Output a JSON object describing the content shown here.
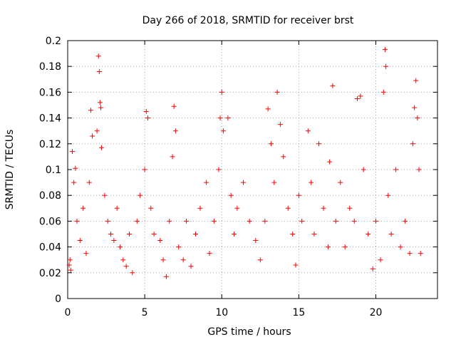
{
  "chart_data": {
    "type": "scatter",
    "title": "Day 266 of 2018, SRMTID for receiver brst",
    "xlabel": "GPS time / hours",
    "ylabel": "SRMTID / TECUs",
    "xlim": [
      0,
      24
    ],
    "ylim": [
      0,
      0.2
    ],
    "x_ticks": [
      "0",
      "5",
      "10",
      "15",
      "20"
    ],
    "y_ticks": [
      "0",
      "0.02",
      "0.04",
      "0.06",
      "0.08",
      "0.1",
      "0.12",
      "0.14",
      "0.16",
      "0.18",
      "0.2"
    ],
    "grid": true,
    "marker": "plus",
    "color": "#ff0000",
    "series": [
      {
        "points": [
          [
            0.1,
            0.026
          ],
          [
            0.15,
            0.03
          ],
          [
            0.2,
            0.022
          ],
          [
            0.3,
            0.114
          ],
          [
            0.4,
            0.09
          ],
          [
            0.5,
            0.101
          ],
          [
            0.6,
            0.06
          ],
          [
            0.8,
            0.045
          ],
          [
            1.0,
            0.07
          ],
          [
            1.2,
            0.035
          ],
          [
            1.4,
            0.09
          ],
          [
            1.5,
            0.146
          ],
          [
            1.6,
            0.126
          ],
          [
            1.9,
            0.13
          ],
          [
            2.0,
            0.188
          ],
          [
            2.05,
            0.176
          ],
          [
            2.1,
            0.152
          ],
          [
            2.15,
            0.148
          ],
          [
            2.2,
            0.117
          ],
          [
            2.4,
            0.08
          ],
          [
            2.6,
            0.06
          ],
          [
            2.8,
            0.05
          ],
          [
            3.0,
            0.045
          ],
          [
            3.2,
            0.07
          ],
          [
            3.4,
            0.04
          ],
          [
            3.6,
            0.03
          ],
          [
            3.8,
            0.025
          ],
          [
            4.0,
            0.05
          ],
          [
            4.2,
            0.02
          ],
          [
            4.5,
            0.06
          ],
          [
            4.7,
            0.08
          ],
          [
            5.0,
            0.1
          ],
          [
            5.1,
            0.145
          ],
          [
            5.2,
            0.14
          ],
          [
            5.4,
            0.07
          ],
          [
            5.6,
            0.05
          ],
          [
            6.0,
            0.045
          ],
          [
            6.2,
            0.03
          ],
          [
            6.4,
            0.017
          ],
          [
            6.6,
            0.06
          ],
          [
            6.8,
            0.11
          ],
          [
            6.9,
            0.149
          ],
          [
            7.0,
            0.13
          ],
          [
            7.2,
            0.04
          ],
          [
            7.5,
            0.03
          ],
          [
            7.7,
            0.06
          ],
          [
            8.0,
            0.025
          ],
          [
            8.3,
            0.05
          ],
          [
            8.6,
            0.07
          ],
          [
            9.0,
            0.09
          ],
          [
            9.2,
            0.035
          ],
          [
            9.5,
            0.06
          ],
          [
            9.8,
            0.1
          ],
          [
            9.9,
            0.14
          ],
          [
            10.0,
            0.16
          ],
          [
            10.1,
            0.13
          ],
          [
            10.4,
            0.14
          ],
          [
            10.6,
            0.08
          ],
          [
            10.8,
            0.05
          ],
          [
            11.0,
            0.07
          ],
          [
            11.4,
            0.09
          ],
          [
            11.8,
            0.06
          ],
          [
            12.2,
            0.045
          ],
          [
            12.5,
            0.03
          ],
          [
            12.8,
            0.06
          ],
          [
            13.0,
            0.147
          ],
          [
            13.2,
            0.12
          ],
          [
            13.4,
            0.09
          ],
          [
            13.6,
            0.16
          ],
          [
            13.8,
            0.135
          ],
          [
            14.0,
            0.11
          ],
          [
            14.3,
            0.07
          ],
          [
            14.6,
            0.05
          ],
          [
            14.8,
            0.026
          ],
          [
            15.0,
            0.08
          ],
          [
            15.2,
            0.06
          ],
          [
            15.6,
            0.13
          ],
          [
            15.8,
            0.09
          ],
          [
            16.0,
            0.05
          ],
          [
            16.3,
            0.12
          ],
          [
            16.6,
            0.07
          ],
          [
            16.9,
            0.04
          ],
          [
            17.0,
            0.106
          ],
          [
            17.2,
            0.165
          ],
          [
            17.4,
            0.06
          ],
          [
            17.7,
            0.09
          ],
          [
            18.0,
            0.04
          ],
          [
            18.3,
            0.07
          ],
          [
            18.6,
            0.06
          ],
          [
            18.8,
            0.155
          ],
          [
            19.0,
            0.157
          ],
          [
            19.2,
            0.1
          ],
          [
            19.5,
            0.05
          ],
          [
            19.8,
            0.023
          ],
          [
            20.0,
            0.06
          ],
          [
            20.3,
            0.03
          ],
          [
            20.5,
            0.16
          ],
          [
            20.6,
            0.193
          ],
          [
            20.65,
            0.18
          ],
          [
            20.8,
            0.08
          ],
          [
            21.0,
            0.05
          ],
          [
            21.3,
            0.1
          ],
          [
            21.6,
            0.04
          ],
          [
            21.9,
            0.06
          ],
          [
            22.2,
            0.035
          ],
          [
            22.4,
            0.12
          ],
          [
            22.5,
            0.148
          ],
          [
            22.6,
            0.169
          ],
          [
            22.7,
            0.14
          ],
          [
            22.8,
            0.1
          ],
          [
            22.9,
            0.035
          ]
        ]
      }
    ]
  }
}
